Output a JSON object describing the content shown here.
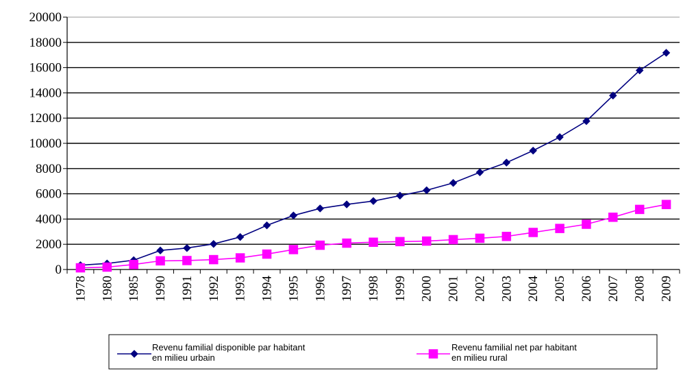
{
  "chart_data": {
    "type": "line",
    "categories": [
      "1978",
      "1980",
      "1985",
      "1990",
      "1991",
      "1992",
      "1993",
      "1994",
      "1995",
      "1996",
      "1997",
      "1998",
      "1999",
      "2000",
      "2001",
      "2002",
      "2003",
      "2004",
      "2005",
      "2006",
      "2007",
      "2008",
      "2009"
    ],
    "series": [
      {
        "name": "Revenu familial disponible par habitant en milieu urbain",
        "legend_lines": [
          "Revenu familial disponible par habitant",
          "en milieu urbain"
        ],
        "values": [
          343,
          478,
          739,
          1510,
          1700,
          2027,
          2577,
          3496,
          4283,
          4839,
          5160,
          5425,
          5854,
          6280,
          6860,
          7703,
          8472,
          9422,
          10493,
          11759,
          13786,
          15781,
          17175
        ],
        "color": "#000080",
        "marker": "diamond"
      },
      {
        "name": "Revenu familial net par habitant en milieu rural",
        "legend_lines": [
          "Revenu familial net par habitant",
          "en milieu rural"
        ],
        "values": [
          134,
          191,
          398,
          686,
          709,
          784,
          922,
          1221,
          1578,
          1926,
          2090,
          2162,
          2210,
          2253,
          2366,
          2476,
          2622,
          2936,
          3255,
          3587,
          4140,
          4761,
          5153
        ],
        "color": "#FF00FF",
        "marker": "square"
      }
    ],
    "y_ticks": [
      "0",
      "2000",
      "4000",
      "6000",
      "8000",
      "10000",
      "12000",
      "14000",
      "16000",
      "18000",
      "20000"
    ],
    "ylim": [
      0,
      20000
    ],
    "grid": true,
    "legend_position": "bottom",
    "title": "",
    "xlabel": "",
    "ylabel": ""
  }
}
